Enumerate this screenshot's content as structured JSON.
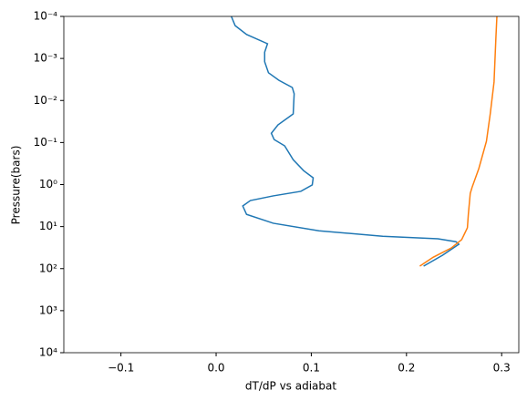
{
  "chart_data": {
    "type": "line",
    "xlabel": "dT/dP vs adiabat",
    "ylabel": "Pressure(bars)",
    "yscale": "log",
    "xlim": [
      -0.16,
      0.318
    ],
    "ylim": [
      10000,
      0.0001
    ],
    "xticks": [
      {
        "value": -0.1,
        "label": "−0.1"
      },
      {
        "value": 0,
        "label": "0.0"
      },
      {
        "value": 0.1,
        "label": "0.1"
      },
      {
        "value": 0.2,
        "label": "0.2"
      },
      {
        "value": 0.3,
        "label": "0.3"
      }
    ],
    "yticks": [
      {
        "value": 0.0001,
        "label": "10⁻⁴"
      },
      {
        "value": 0.001,
        "label": "10⁻³"
      },
      {
        "value": 0.01,
        "label": "10⁻²"
      },
      {
        "value": 0.1,
        "label": "10⁻¹"
      },
      {
        "value": 1,
        "label": "10⁰"
      },
      {
        "value": 10,
        "label": "10¹"
      },
      {
        "value": 100,
        "label": "10²"
      },
      {
        "value": 1000,
        "label": "10³"
      },
      {
        "value": 10000,
        "label": "10⁴"
      }
    ],
    "series": [
      {
        "color": "#1f77b4",
        "x": [
          0.016,
          0.02,
          0.032,
          0.054,
          0.051,
          0.051,
          0.055,
          0.066,
          0.08,
          0.082,
          0.081,
          0.065,
          0.058,
          0.061,
          0.072,
          0.081,
          0.092,
          0.102,
          0.101,
          0.089,
          0.06,
          0.036,
          0.028,
          0.032,
          0.06,
          0.108,
          0.175,
          0.233,
          0.252,
          0.255,
          0.238,
          0.218
        ],
        "values": [
          0.0001,
          0.000166,
          0.000269,
          0.000447,
          0.000708,
          0.0012,
          0.00219,
          0.00331,
          0.0049,
          0.00692,
          0.0209,
          0.038,
          0.0603,
          0.0851,
          0.12,
          0.257,
          0.468,
          0.692,
          1.02,
          1.45,
          1.86,
          2.4,
          3.24,
          5.13,
          8.32,
          12.6,
          17,
          19.5,
          22.9,
          26.3,
          47.9,
          87.1
        ]
      },
      {
        "color": "#ff7f0e",
        "x": [
          0.295,
          0.294,
          0.292,
          0.288,
          0.284,
          0.276,
          0.269,
          0.267,
          0.265,
          0.264,
          0.258,
          0.247,
          0.228,
          0.214
        ],
        "values": [
          0.0001,
          0.000302,
          0.00363,
          0.0209,
          0.0933,
          0.417,
          1.15,
          1.62,
          5.13,
          10.7,
          20.4,
          32.4,
          53.7,
          87.1
        ]
      }
    ]
  }
}
